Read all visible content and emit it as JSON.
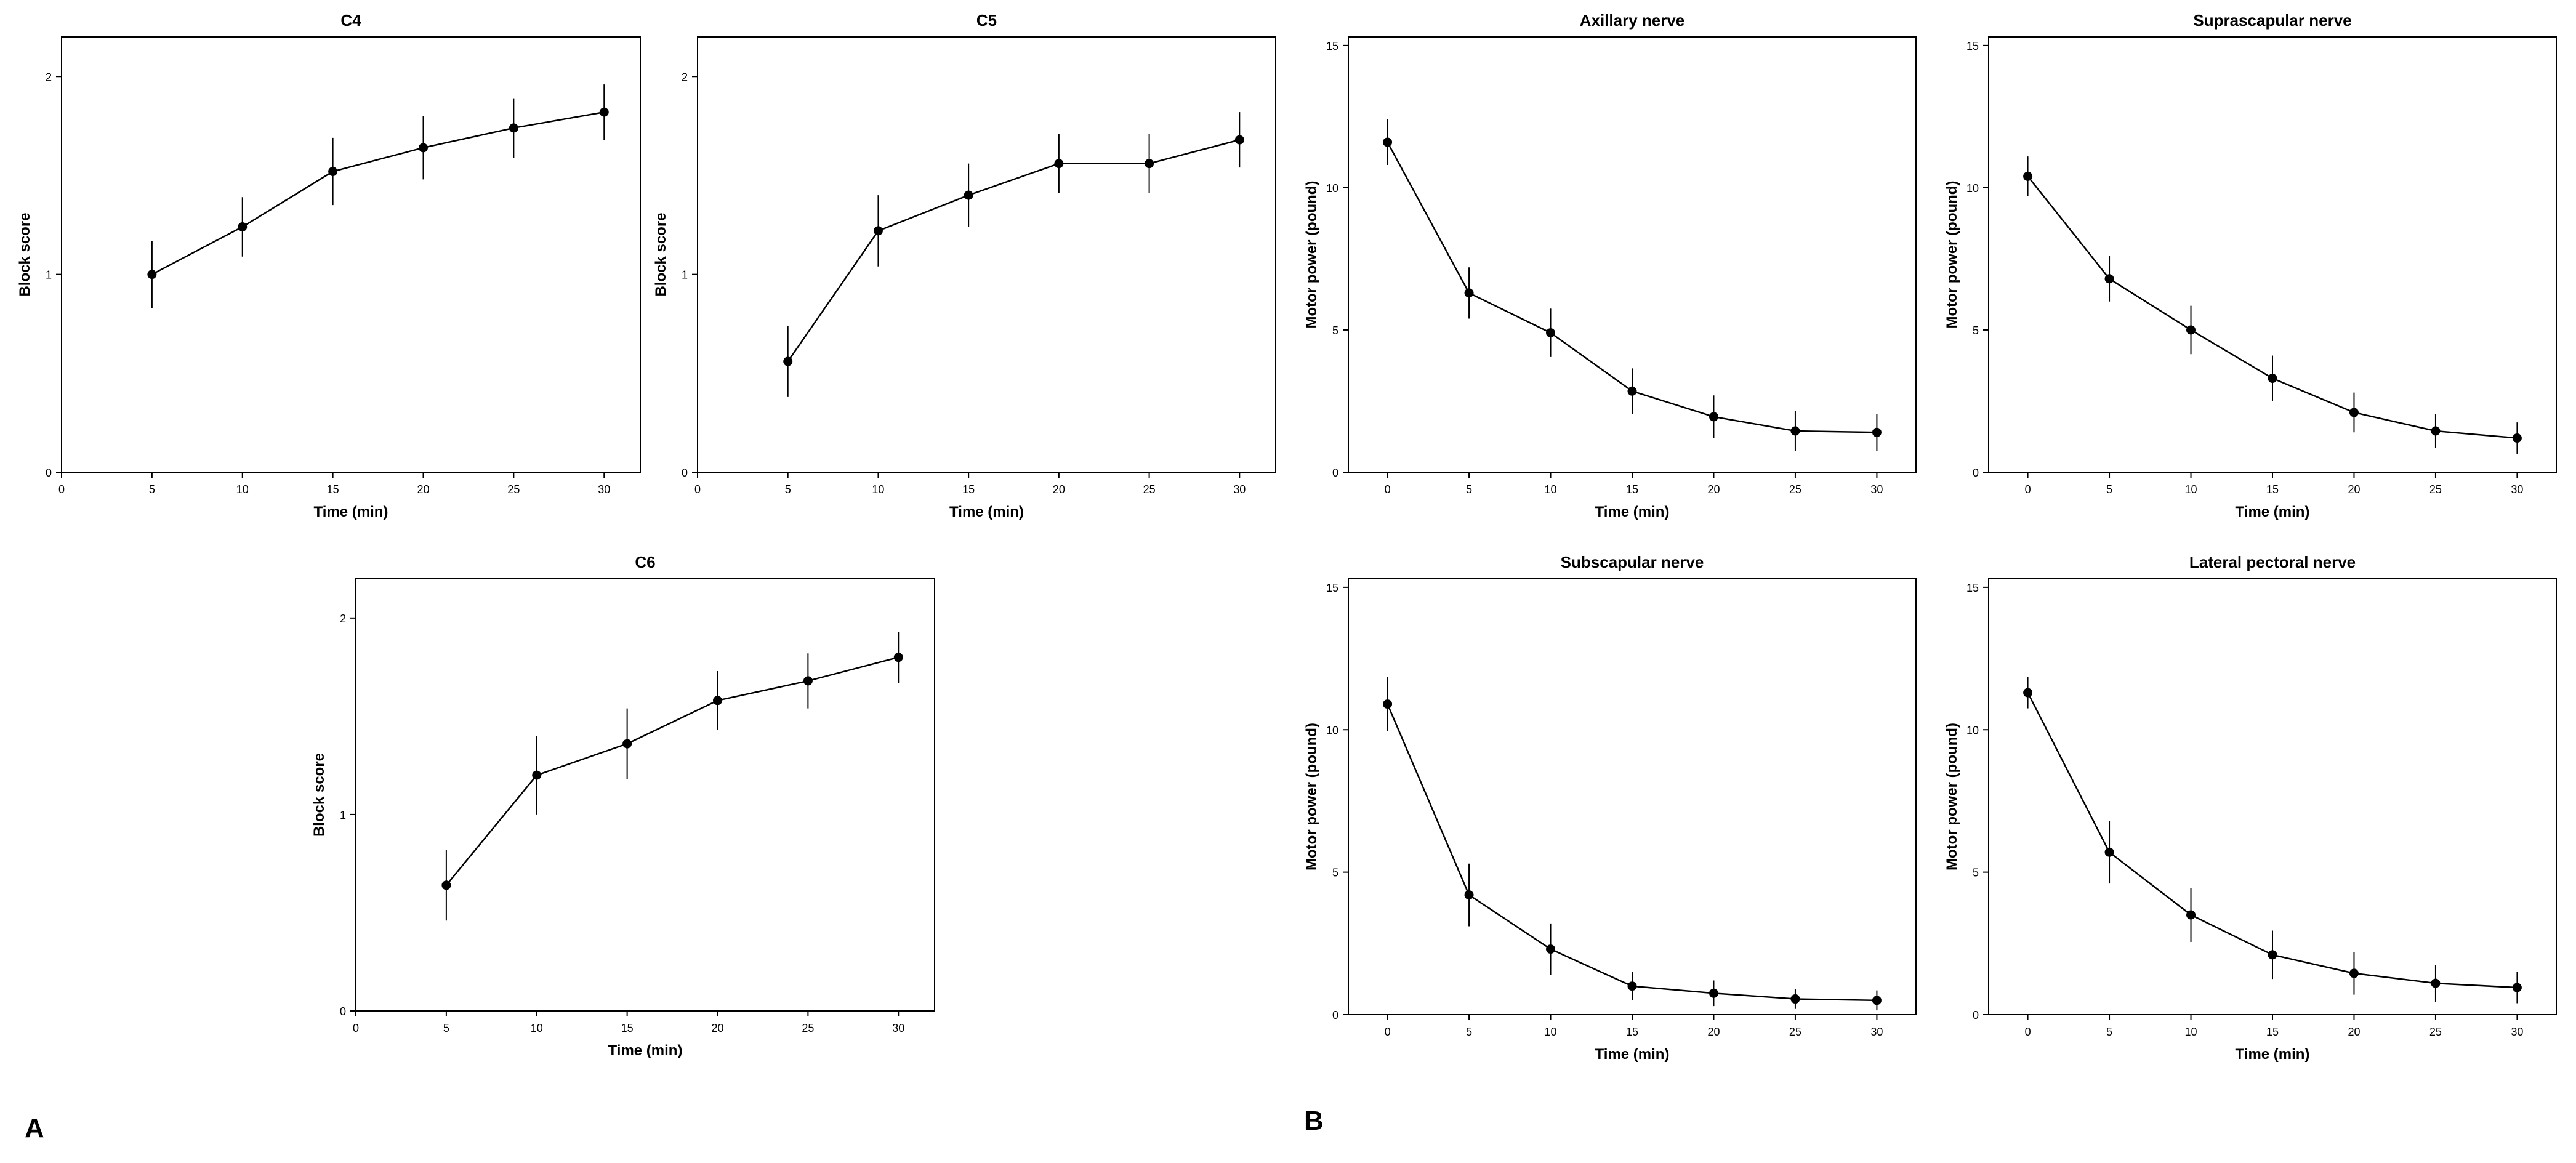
{
  "figure": {
    "panel_labels": {
      "a": "A",
      "b": "B"
    }
  },
  "colors": {
    "line": "#000000",
    "frame": "#000000",
    "background": "#ffffff"
  },
  "chart_data": [
    {
      "id": "c4",
      "type": "line",
      "title": "C4",
      "xlabel": "Time (min)",
      "ylabel": "Block score",
      "xlim": [
        0,
        32
      ],
      "ylim": [
        0,
        2.2
      ],
      "xticks": [
        0,
        5,
        10,
        15,
        20,
        25,
        30
      ],
      "yticks": [
        0,
        1,
        2
      ],
      "x": [
        5,
        10,
        15,
        20,
        25,
        30
      ],
      "y": [
        1.0,
        1.24,
        1.52,
        1.64,
        1.74,
        1.82
      ],
      "err": [
        0.17,
        0.15,
        0.17,
        0.16,
        0.15,
        0.14
      ]
    },
    {
      "id": "c5",
      "type": "line",
      "title": "C5",
      "xlabel": "Time (min)",
      "ylabel": "Block score",
      "xlim": [
        0,
        32
      ],
      "ylim": [
        0,
        2.2
      ],
      "xticks": [
        0,
        5,
        10,
        15,
        20,
        25,
        30
      ],
      "yticks": [
        0,
        1,
        2
      ],
      "x": [
        5,
        10,
        15,
        20,
        25,
        30
      ],
      "y": [
        0.56,
        1.22,
        1.4,
        1.56,
        1.56,
        1.68
      ],
      "err": [
        0.18,
        0.18,
        0.16,
        0.15,
        0.15,
        0.14
      ]
    },
    {
      "id": "c6",
      "type": "line",
      "title": "C6",
      "xlabel": "Time (min)",
      "ylabel": "Block score",
      "xlim": [
        0,
        32
      ],
      "ylim": [
        0,
        2.2
      ],
      "xticks": [
        0,
        5,
        10,
        15,
        20,
        25,
        30
      ],
      "yticks": [
        0,
        1,
        2
      ],
      "x": [
        5,
        10,
        15,
        20,
        25,
        30
      ],
      "y": [
        0.64,
        1.2,
        1.36,
        1.58,
        1.68,
        1.8
      ],
      "err": [
        0.18,
        0.2,
        0.18,
        0.15,
        0.14,
        0.13
      ]
    },
    {
      "id": "axillary",
      "type": "line",
      "title": "Axillary nerve",
      "xlabel": "Time (min)",
      "ylabel": "Motor power (pound)",
      "xlim": [
        -2.4,
        32.4
      ],
      "ylim": [
        0,
        15.3
      ],
      "xticks": [
        0,
        5,
        10,
        15,
        20,
        25,
        30
      ],
      "yticks": [
        0,
        5,
        10,
        15
      ],
      "x": [
        0,
        5,
        10,
        15,
        20,
        25,
        30
      ],
      "y": [
        11.6,
        6.3,
        4.9,
        2.85,
        1.95,
        1.45,
        1.4
      ],
      "err": [
        0.8,
        0.9,
        0.85,
        0.8,
        0.75,
        0.7,
        0.65
      ]
    },
    {
      "id": "suprascapular",
      "type": "line",
      "title": "Suprascapular nerve",
      "xlabel": "Time (min)",
      "ylabel": "Motor power (pound)",
      "xlim": [
        -2.4,
        32.4
      ],
      "ylim": [
        0,
        15.3
      ],
      "xticks": [
        0,
        5,
        10,
        15,
        20,
        25,
        30
      ],
      "yticks": [
        0,
        5,
        10,
        15
      ],
      "x": [
        0,
        5,
        10,
        15,
        20,
        25,
        30
      ],
      "y": [
        10.4,
        6.8,
        5.0,
        3.3,
        2.1,
        1.45,
        1.2
      ],
      "err": [
        0.7,
        0.8,
        0.85,
        0.8,
        0.7,
        0.6,
        0.55
      ]
    },
    {
      "id": "subscapular",
      "type": "line",
      "title": "Subscapular nerve",
      "xlabel": "Time (min)",
      "ylabel": "Motor power (pound)",
      "xlim": [
        -2.4,
        32.4
      ],
      "ylim": [
        0,
        15.3
      ],
      "xticks": [
        0,
        5,
        10,
        15,
        20,
        25,
        30
      ],
      "yticks": [
        0,
        5,
        10,
        15
      ],
      "x": [
        0,
        5,
        10,
        15,
        20,
        25,
        30
      ],
      "y": [
        10.9,
        4.2,
        2.3,
        1.0,
        0.75,
        0.55,
        0.5
      ],
      "err": [
        0.95,
        1.1,
        0.9,
        0.5,
        0.45,
        0.35,
        0.35
      ]
    },
    {
      "id": "lateral_pectoral",
      "type": "line",
      "title": "Lateral pectoral nerve",
      "xlabel": "Time (min)",
      "ylabel": "Motor power (pound)",
      "xlim": [
        -2.4,
        32.4
      ],
      "ylim": [
        0,
        15.3
      ],
      "xticks": [
        0,
        5,
        10,
        15,
        20,
        25,
        30
      ],
      "yticks": [
        0,
        5,
        10,
        15
      ],
      "x": [
        0,
        5,
        10,
        15,
        20,
        25,
        30
      ],
      "y": [
        11.3,
        5.7,
        3.5,
        2.1,
        1.45,
        1.1,
        0.95
      ],
      "err": [
        0.55,
        1.1,
        0.95,
        0.85,
        0.75,
        0.65,
        0.55
      ]
    }
  ]
}
